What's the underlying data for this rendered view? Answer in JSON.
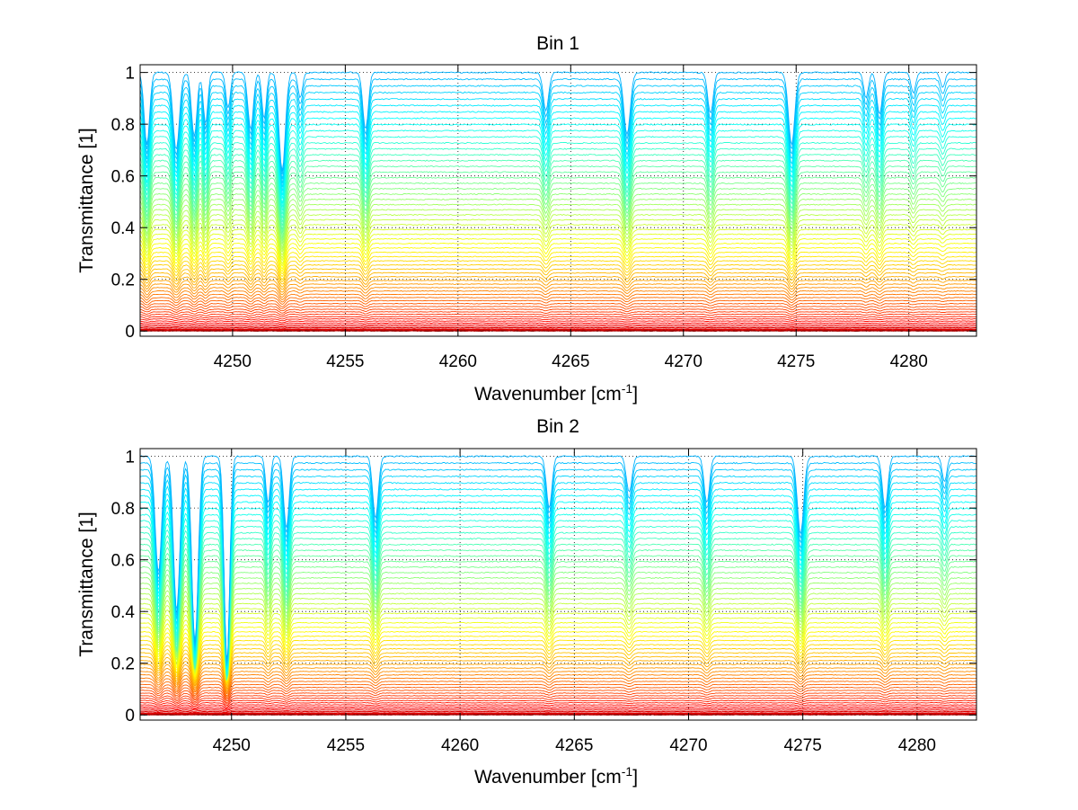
{
  "chart_data": [
    {
      "type": "line",
      "title": "Bin 1",
      "xlabel_main": "Wavenumber [cm",
      "xlabel_sup": "-1",
      "xlabel_end": "]",
      "ylabel": "Transmittance [1]",
      "xlim": [
        4245.9,
        4283.0
      ],
      "ylim": [
        -0.02,
        1.03
      ],
      "xticks": [
        4250,
        4255,
        4260,
        4265,
        4270,
        4275,
        4280
      ],
      "xtick_labels": [
        "4250",
        "4255",
        "4260",
        "4265",
        "4270",
        "4275",
        "4280"
      ],
      "yticks": [
        0,
        0.2,
        0.4,
        0.6,
        0.8,
        1
      ],
      "ytick_labels": [
        "0",
        "0.2",
        "0.4",
        "0.6",
        "0.8",
        "1"
      ],
      "grid": true,
      "colormap": "jet",
      "series_count": 62,
      "series_baseline_min": 0.0,
      "series_baseline_max": 1.0,
      "absorption_lines": [
        {
          "x": 4246.2,
          "depth": 0.28,
          "width": 0.12
        },
        {
          "x": 4247.5,
          "depth": 0.3,
          "width": 0.14
        },
        {
          "x": 4248.3,
          "depth": 0.25,
          "width": 0.12
        },
        {
          "x": 4248.8,
          "depth": 0.2,
          "width": 0.1
        },
        {
          "x": 4249.8,
          "depth": 0.14,
          "width": 0.1
        },
        {
          "x": 4250.8,
          "depth": 0.22,
          "width": 0.12
        },
        {
          "x": 4251.4,
          "depth": 0.18,
          "width": 0.1
        },
        {
          "x": 4252.2,
          "depth": 0.38,
          "width": 0.14
        },
        {
          "x": 4253.0,
          "depth": 0.1,
          "width": 0.1
        },
        {
          "x": 4255.9,
          "depth": 0.22,
          "width": 0.12
        },
        {
          "x": 4263.9,
          "depth": 0.15,
          "width": 0.12
        },
        {
          "x": 4267.5,
          "depth": 0.24,
          "width": 0.14
        },
        {
          "x": 4271.2,
          "depth": 0.16,
          "width": 0.12
        },
        {
          "x": 4274.8,
          "depth": 0.28,
          "width": 0.14
        },
        {
          "x": 4278.1,
          "depth": 0.1,
          "width": 0.1
        },
        {
          "x": 4278.7,
          "depth": 0.16,
          "width": 0.12
        },
        {
          "x": 4280.2,
          "depth": 0.08,
          "width": 0.1
        },
        {
          "x": 4281.5,
          "depth": 0.06,
          "width": 0.1
        }
      ]
    },
    {
      "type": "line",
      "title": "Bin 2",
      "xlabel_main": "Wavenumber [cm",
      "xlabel_sup": "-1",
      "xlabel_end": "]",
      "ylabel": "Transmittance [1]",
      "xlim": [
        4246.0,
        4282.6
      ],
      "ylim": [
        -0.02,
        1.03
      ],
      "xticks": [
        4250,
        4255,
        4260,
        4265,
        4270,
        4275,
        4280
      ],
      "xtick_labels": [
        "4250",
        "4255",
        "4260",
        "4265",
        "4270",
        "4275",
        "4280"
      ],
      "yticks": [
        0,
        0.2,
        0.4,
        0.6,
        0.8,
        1
      ],
      "ytick_labels": [
        "0",
        "0.2",
        "0.4",
        "0.6",
        "0.8",
        "1"
      ],
      "grid": true,
      "colormap": "jet",
      "series_count": 62,
      "series_baseline_min": 0.0,
      "series_baseline_max": 1.0,
      "absorption_lines": [
        {
          "x": 4246.8,
          "depth": 0.45,
          "width": 0.14
        },
        {
          "x": 4247.6,
          "depth": 0.6,
          "width": 0.14
        },
        {
          "x": 4248.4,
          "depth": 0.72,
          "width": 0.14
        },
        {
          "x": 4249.8,
          "depth": 0.8,
          "width": 0.12
        },
        {
          "x": 4251.6,
          "depth": 0.18,
          "width": 0.1
        },
        {
          "x": 4252.4,
          "depth": 0.28,
          "width": 0.12
        },
        {
          "x": 4256.3,
          "depth": 0.24,
          "width": 0.12
        },
        {
          "x": 4263.9,
          "depth": 0.2,
          "width": 0.12
        },
        {
          "x": 4267.4,
          "depth": 0.14,
          "width": 0.12
        },
        {
          "x": 4270.8,
          "depth": 0.18,
          "width": 0.12
        },
        {
          "x": 4274.9,
          "depth": 0.3,
          "width": 0.14
        },
        {
          "x": 4278.6,
          "depth": 0.2,
          "width": 0.12
        },
        {
          "x": 4281.2,
          "depth": 0.1,
          "width": 0.1
        }
      ]
    }
  ]
}
